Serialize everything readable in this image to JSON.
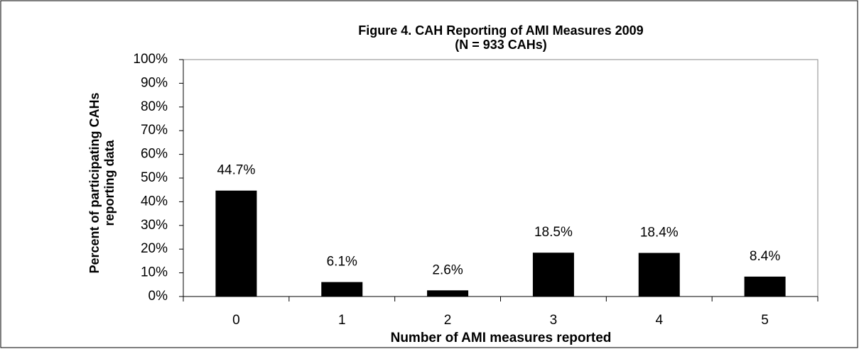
{
  "chart_data": {
    "type": "bar",
    "title": "Figure 4. CAH Reporting of AMI Measures 2009",
    "subtitle": "(N = 933 CAHs)",
    "x_label": "Number of AMI measures reported",
    "y_label": [
      "Percent of participating CAHs",
      "reporting data"
    ],
    "categories": [
      "0",
      "1",
      "2",
      "3",
      "4",
      "5"
    ],
    "values": [
      44.7,
      6.1,
      2.6,
      18.5,
      18.4,
      8.4
    ],
    "value_labels": [
      "44.7%",
      "6.1%",
      "2.6%",
      "18.5%",
      "18.4%",
      "8.4%"
    ],
    "color": "#000000",
    "ylim": [
      0,
      100
    ],
    "yticks": [
      {
        "value": 0,
        "label": "0%"
      },
      {
        "value": 10,
        "label": "10%"
      },
      {
        "value": 20,
        "label": "20%"
      },
      {
        "value": 30,
        "label": "30%"
      },
      {
        "value": 40,
        "label": "40%"
      },
      {
        "value": 50,
        "label": "50%"
      },
      {
        "value": 60,
        "label": "60%"
      },
      {
        "value": 70,
        "label": "70%"
      },
      {
        "value": 80,
        "label": "80%"
      },
      {
        "value": 90,
        "label": "90%"
      },
      {
        "value": 100,
        "label": "100%"
      }
    ],
    "grid": false
  }
}
